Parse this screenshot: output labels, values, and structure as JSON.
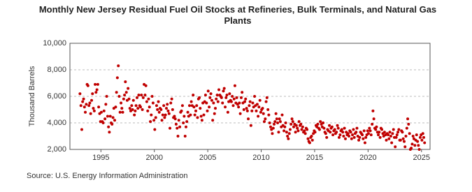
{
  "chart_data": {
    "type": "scatter",
    "title": "Monthly New Jersey Residual Fuel Oil Stocks at Refineries, Bulk Terminals, and Natural Gas Plants",
    "y_label": "Thousand Barrels",
    "source": "Source: U.S. Energy Information Administration",
    "color": "#c00000",
    "grid": true,
    "xlim": [
      1992.1,
      2025.8
    ],
    "xticks": [
      1995,
      2000,
      2005,
      2010,
      2015,
      2020,
      2025
    ],
    "ylim": [
      2000,
      10000
    ],
    "yticks": [
      {
        "value": 2000,
        "label": "2,000"
      },
      {
        "value": 4000,
        "label": "4,000"
      },
      {
        "value": 6000,
        "label": "6,000"
      },
      {
        "value": 8000,
        "label": "8,000"
      },
      {
        "value": 10000,
        "label": "10,000"
      }
    ],
    "x": [
      1993.04,
      1993.13,
      1993.21,
      1993.29,
      1993.38,
      1993.46,
      1993.54,
      1993.63,
      1993.71,
      1993.79,
      1993.88,
      1993.96,
      1994.04,
      1994.13,
      1994.21,
      1994.29,
      1994.38,
      1994.46,
      1994.54,
      1994.63,
      1994.71,
      1994.79,
      1994.88,
      1994.96,
      1995.04,
      1995.13,
      1995.21,
      1995.29,
      1995.38,
      1995.46,
      1995.54,
      1995.63,
      1995.71,
      1995.79,
      1995.88,
      1995.96,
      1996.04,
      1996.13,
      1996.21,
      1996.29,
      1996.38,
      1996.46,
      1996.54,
      1996.63,
      1996.71,
      1996.79,
      1996.88,
      1996.96,
      1997.04,
      1997.13,
      1997.21,
      1997.29,
      1997.38,
      1997.46,
      1997.54,
      1997.63,
      1997.71,
      1997.79,
      1997.88,
      1997.96,
      1998.04,
      1998.13,
      1998.21,
      1998.29,
      1998.38,
      1998.46,
      1998.54,
      1998.63,
      1998.71,
      1998.79,
      1998.88,
      1998.96,
      1999.04,
      1999.13,
      1999.21,
      1999.29,
      1999.38,
      1999.46,
      1999.54,
      1999.63,
      1999.71,
      1999.79,
      1999.88,
      1999.96,
      2000.04,
      2000.13,
      2000.21,
      2000.29,
      2000.38,
      2000.46,
      2000.54,
      2000.63,
      2000.71,
      2000.79,
      2000.88,
      2000.96,
      2001.04,
      2001.13,
      2001.21,
      2001.29,
      2001.38,
      2001.46,
      2001.54,
      2001.63,
      2001.71,
      2001.79,
      2001.88,
      2001.96,
      2002.04,
      2002.13,
      2002.21,
      2002.29,
      2002.38,
      2002.46,
      2002.54,
      2002.63,
      2002.71,
      2002.79,
      2002.88,
      2002.96,
      2003.04,
      2003.13,
      2003.21,
      2003.29,
      2003.38,
      2003.46,
      2003.54,
      2003.63,
      2003.71,
      2003.79,
      2003.88,
      2003.96,
      2004.04,
      2004.13,
      2004.21,
      2004.29,
      2004.38,
      2004.46,
      2004.54,
      2004.63,
      2004.71,
      2004.79,
      2004.88,
      2004.96,
      2005.04,
      2005.13,
      2005.21,
      2005.29,
      2005.38,
      2005.46,
      2005.54,
      2005.63,
      2005.71,
      2005.79,
      2005.88,
      2005.96,
      2006.04,
      2006.13,
      2006.21,
      2006.29,
      2006.38,
      2006.46,
      2006.54,
      2006.63,
      2006.71,
      2006.79,
      2006.88,
      2006.96,
      2007.04,
      2007.13,
      2007.21,
      2007.29,
      2007.38,
      2007.46,
      2007.54,
      2007.63,
      2007.71,
      2007.79,
      2007.88,
      2007.96,
      2008.04,
      2008.13,
      2008.21,
      2008.29,
      2008.38,
      2008.46,
      2008.54,
      2008.63,
      2008.71,
      2008.79,
      2008.88,
      2008.96,
      2009.04,
      2009.13,
      2009.21,
      2009.29,
      2009.38,
      2009.46,
      2009.54,
      2009.63,
      2009.71,
      2009.79,
      2009.88,
      2009.96,
      2010.04,
      2010.13,
      2010.21,
      2010.29,
      2010.38,
      2010.46,
      2010.54,
      2010.63,
      2010.71,
      2010.79,
      2010.88,
      2010.96,
      2011.04,
      2011.13,
      2011.21,
      2011.29,
      2011.38,
      2011.46,
      2011.54,
      2011.63,
      2011.71,
      2011.79,
      2011.88,
      2011.96,
      2012.04,
      2012.13,
      2012.21,
      2012.29,
      2012.38,
      2012.46,
      2012.54,
      2012.63,
      2012.71,
      2012.79,
      2012.88,
      2012.96,
      2013.04,
      2013.13,
      2013.21,
      2013.29,
      2013.38,
      2013.46,
      2013.54,
      2013.63,
      2013.71,
      2013.79,
      2013.88,
      2013.96,
      2014.04,
      2014.13,
      2014.21,
      2014.29,
      2014.38,
      2014.46,
      2014.54,
      2014.63,
      2014.71,
      2014.79,
      2014.88,
      2014.96,
      2015.04,
      2015.13,
      2015.21,
      2015.29,
      2015.38,
      2015.46,
      2015.54,
      2015.63,
      2015.71,
      2015.79,
      2015.88,
      2015.96,
      2016.04,
      2016.13,
      2016.21,
      2016.29,
      2016.38,
      2016.46,
      2016.54,
      2016.63,
      2016.71,
      2016.79,
      2016.88,
      2016.96,
      2017.04,
      2017.13,
      2017.21,
      2017.29,
      2017.38,
      2017.46,
      2017.54,
      2017.63,
      2017.71,
      2017.79,
      2017.88,
      2017.96,
      2018.04,
      2018.13,
      2018.21,
      2018.29,
      2018.38,
      2018.46,
      2018.54,
      2018.63,
      2018.71,
      2018.79,
      2018.88,
      2018.96,
      2019.04,
      2019.13,
      2019.21,
      2019.29,
      2019.38,
      2019.46,
      2019.54,
      2019.63,
      2019.71,
      2019.79,
      2019.88,
      2019.96,
      2020.04,
      2020.13,
      2020.21,
      2020.29,
      2020.38,
      2020.46,
      2020.54,
      2020.63,
      2020.71,
      2020.79,
      2020.88,
      2020.96,
      2021.04,
      2021.13,
      2021.21,
      2021.29,
      2021.38,
      2021.46,
      2021.54,
      2021.63,
      2021.71,
      2021.79,
      2021.88,
      2021.96,
      2022.04,
      2022.13,
      2022.21,
      2022.29,
      2022.38,
      2022.46,
      2022.54,
      2022.63,
      2022.71,
      2022.79,
      2022.88,
      2022.96,
      2023.04,
      2023.13,
      2023.21,
      2023.29,
      2023.38,
      2023.46,
      2023.54,
      2023.63,
      2023.71,
      2023.79,
      2023.88,
      2023.96,
      2024.04,
      2024.13,
      2024.21,
      2024.29,
      2024.38,
      2024.46,
      2024.54,
      2024.63,
      2024.71,
      2024.79,
      2024.88,
      2024.96,
      2025.04,
      2025.13,
      2025.21,
      2025.29
    ],
    "values": [
      6200,
      5300,
      3500,
      5600,
      5800,
      5200,
      4800,
      5400,
      6900,
      6800,
      5300,
      5500,
      4700,
      5700,
      6200,
      5100,
      4900,
      6900,
      6300,
      6500,
      6900,
      5200,
      4700,
      4100,
      4800,
      4100,
      4000,
      4900,
      4300,
      5400,
      6000,
      4500,
      3700,
      3300,
      4500,
      4000,
      3900,
      4400,
      5100,
      4200,
      5200,
      6300,
      7400,
      8300,
      6000,
      4800,
      5500,
      5100,
      4800,
      5800,
      6100,
      7100,
      6300,
      5700,
      6600,
      5800,
      5100,
      4900,
      5300,
      5000,
      5700,
      4600,
      4900,
      5300,
      5900,
      5100,
      6100,
      5300,
      5200,
      6100,
      5000,
      5900,
      6900,
      6100,
      6800,
      5600,
      4900,
      5800,
      5200,
      4100,
      4600,
      6000,
      5500,
      4200,
      3500,
      4400,
      5300,
      5000,
      5600,
      4800,
      5100,
      5000,
      4200,
      4600,
      5300,
      4400,
      4600,
      5100,
      5400,
      4900,
      4700,
      3600,
      5500,
      5800,
      5000,
      4400,
      4500,
      4300,
      3900,
      3600,
      3000,
      4200,
      3700,
      4800,
      4900,
      5300,
      4000,
      4500,
      3000,
      3700,
      4100,
      4800,
      4500,
      5300,
      4600,
      5600,
      5300,
      6100,
      5200,
      4600,
      4900,
      5300,
      4400,
      5800,
      5900,
      5100,
      4500,
      4200,
      5500,
      4600,
      5600,
      6100,
      5500,
      4900,
      6400,
      5200,
      5900,
      6200,
      5700,
      4200,
      5500,
      4700,
      5100,
      5800,
      6100,
      5600,
      6500,
      6100,
      6000,
      5900,
      5500,
      6400,
      6600,
      5200,
      5900,
      6100,
      4800,
      5600,
      6200,
      5700,
      5600,
      6000,
      5300,
      5800,
      6800,
      5500,
      5900,
      5400,
      5200,
      5500,
      4700,
      5900,
      6300,
      5500,
      5000,
      5600,
      5800,
      5100,
      4900,
      4300,
      5300,
      5600,
      3800,
      4900,
      5500,
      5200,
      6000,
      5300,
      4900,
      5400,
      4500,
      5200,
      5700,
      4800,
      5000,
      5100,
      4700,
      4100,
      4300,
      5600,
      5900,
      5000,
      4600,
      4000,
      3700,
      3500,
      3200,
      3600,
      3900,
      4100,
      4700,
      4300,
      4000,
      3300,
      4300,
      4100,
      3700,
      4600,
      3800,
      3400,
      3700,
      4000,
      3300,
      3000,
      2800,
      3200,
      3500,
      3900,
      4300,
      4100,
      3700,
      3900,
      3300,
      3800,
      3600,
      3400,
      4100,
      3800,
      3900,
      3500,
      3700,
      3300,
      3400,
      3200,
      3600,
      3500,
      2800,
      2600,
      2500,
      2900,
      3000,
      2700,
      3200,
      3400,
      3300,
      3800,
      3700,
      3900,
      3600,
      3500,
      4100,
      3900,
      3700,
      4000,
      3600,
      3300,
      3200,
      2900,
      3500,
      3400,
      3800,
      3300,
      3600,
      3700,
      3100,
      3400,
      3500,
      3200,
      3300,
      3800,
      3600,
      2900,
      3100,
      3400,
      3500,
      3300,
      3000,
      3600,
      2800,
      3300,
      3100,
      3200,
      3000,
      3400,
      3300,
      2800,
      3100,
      3500,
      2900,
      3200,
      3300,
      3600,
      3000,
      2700,
      2900,
      3300,
      3200,
      3100,
      2800,
      3400,
      2500,
      2900,
      3100,
      3400,
      3200,
      3600,
      3400,
      3100,
      3900,
      4900,
      4300,
      3600,
      3500,
      3700,
      3300,
      3100,
      3300,
      2900,
      3600,
      3500,
      3200,
      3000,
      3300,
      3100,
      2700,
      3200,
      3100,
      2800,
      3300,
      3000,
      2500,
      3200,
      3500,
      2900,
      2200,
      2900,
      3100,
      3300,
      3500,
      2700,
      2700,
      3400,
      3300,
      2800,
      2600,
      2200,
      3000,
      3600,
      4300,
      3900,
      3200,
      2000,
      2100,
      2400,
      3000,
      2800,
      2300,
      2700,
      3100,
      2600,
      2300,
      2000,
      2900,
      3100,
      2700,
      3200,
      2900,
      2500
    ]
  }
}
